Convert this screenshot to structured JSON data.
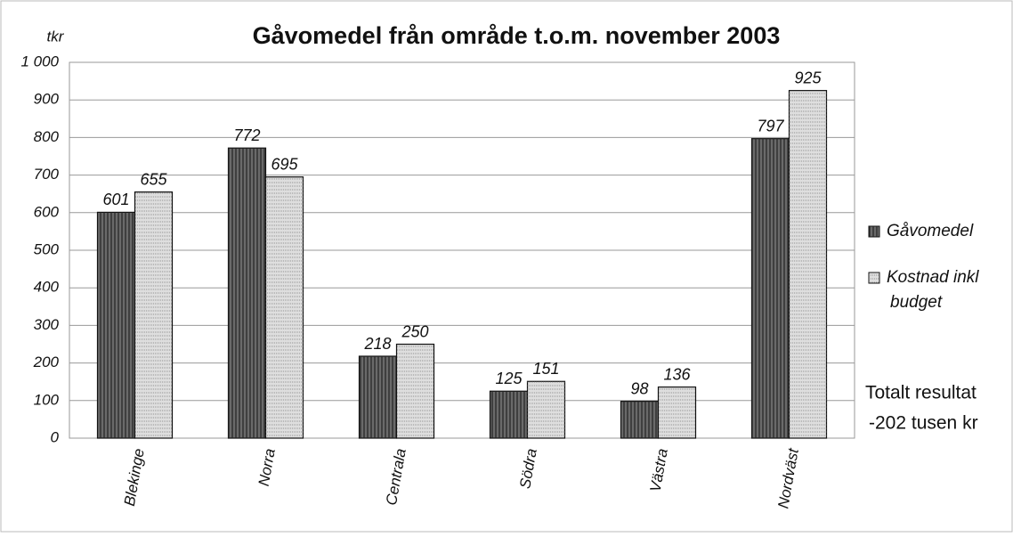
{
  "chart_data": {
    "type": "bar",
    "title": "Gåvomedel från område t.o.m. november 2003",
    "y_label": "tkr",
    "categories": [
      "Blekinge",
      "Norra",
      "Centrala",
      "Södra",
      "Västra",
      "Nordväst"
    ],
    "series": [
      {
        "name": "Gåvomedel",
        "color": "#6a6a6a",
        "values": [
          601,
          772,
          218,
          125,
          98,
          797
        ]
      },
      {
        "name": "Kostnad inkl budget",
        "color": "#dedede",
        "values": [
          655,
          695,
          250,
          151,
          136,
          925
        ]
      }
    ],
    "ylim": [
      0,
      1000
    ],
    "yticks": [
      0,
      100,
      200,
      300,
      400,
      500,
      600,
      700,
      800,
      900,
      {
        "value": 1000,
        "label": "1 000"
      }
    ],
    "grid": true,
    "legend": "right",
    "annotations": [
      "Totalt resultat",
      "-202 tusen kr"
    ]
  }
}
